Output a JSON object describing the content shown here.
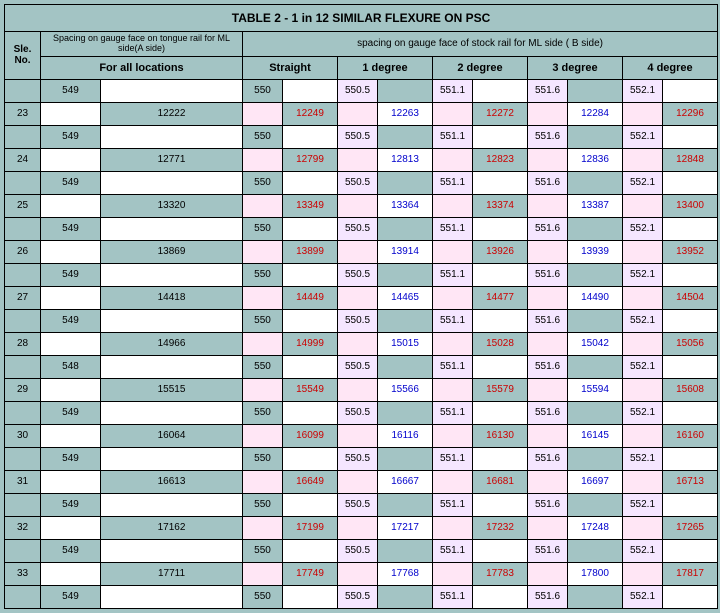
{
  "title": "TABLE 2 -  1 in 12  SIMILAR FLEXURE ON PSC",
  "headerA_top": "Spacing on gauge face on tongue rail for ML side(A side)",
  "headerB_top": "spacing on gauge face of stock rail for ML side ( B side)",
  "sle_label": "Sle. No.",
  "headerA_bot": "For all locations",
  "cols": [
    "Straight",
    "1 degree",
    "2 degree",
    "3 degree",
    "4 degree"
  ],
  "rowStyle": {
    "odd": {
      "a1": "549",
      "a2": "",
      "n1": [
        "550",
        "",
        "550.5",
        "",
        "551.1",
        "",
        "551.6",
        "",
        "552.1",
        ""
      ]
    },
    "odd548": {
      "a1": "548",
      "a2": "",
      "n1": [
        "550",
        "",
        "550.5",
        "",
        "551.1",
        "",
        "551.6",
        "",
        "552.1",
        ""
      ]
    }
  },
  "groups": [
    {
      "sle": "23",
      "middle": {
        "a1": "",
        "a2": "12222",
        "b": [
          "",
          "12249",
          "",
          "12263",
          "",
          "12272",
          "",
          "12284",
          "",
          "12296"
        ]
      },
      "oddKind": "odd"
    },
    {
      "sle": "24",
      "middle": {
        "a1": "",
        "a2": "12771",
        "b": [
          "",
          "12799",
          "",
          "12813",
          "",
          "12823",
          "",
          "12836",
          "",
          "12848"
        ]
      },
      "oddKind": "odd"
    },
    {
      "sle": "25",
      "middle": {
        "a1": "",
        "a2": "13320",
        "b": [
          "",
          "13349",
          "",
          "13364",
          "",
          "13374",
          "",
          "13387",
          "",
          "13400"
        ]
      },
      "oddKind": "odd"
    },
    {
      "sle": "26",
      "middle": {
        "a1": "",
        "a2": "13869",
        "b": [
          "",
          "13899",
          "",
          "13914",
          "",
          "13926",
          "",
          "13939",
          "",
          "13952"
        ]
      },
      "oddKind": "odd"
    },
    {
      "sle": "27",
      "middle": {
        "a1": "",
        "a2": "14418",
        "b": [
          "",
          "14449",
          "",
          "14465",
          "",
          "14477",
          "",
          "14490",
          "",
          "14504"
        ]
      },
      "oddKind": "odd"
    },
    {
      "sle": "28",
      "middle": {
        "a1": "",
        "a2": "14966",
        "b": [
          "",
          "14999",
          "",
          "15015",
          "",
          "15028",
          "",
          "15042",
          "",
          "15056"
        ]
      },
      "oddKind": "odd548"
    },
    {
      "sle": "29",
      "middle": {
        "a1": "",
        "a2": "15515",
        "b": [
          "",
          "15549",
          "",
          "15566",
          "",
          "15579",
          "",
          "15594",
          "",
          "15608"
        ]
      },
      "oddKind": "odd"
    },
    {
      "sle": "30",
      "middle": {
        "a1": "",
        "a2": "16064",
        "b": [
          "",
          "16099",
          "",
          "16116",
          "",
          "16130",
          "",
          "16145",
          "",
          "16160"
        ]
      },
      "oddKind": "odd"
    },
    {
      "sle": "31",
      "middle": {
        "a1": "",
        "a2": "16613",
        "b": [
          "",
          "16649",
          "",
          "16667",
          "",
          "16681",
          "",
          "16697",
          "",
          "16713"
        ]
      },
      "oddKind": "odd"
    },
    {
      "sle": "32",
      "middle": {
        "a1": "",
        "a2": "17162",
        "b": [
          "",
          "17199",
          "",
          "17217",
          "",
          "17232",
          "",
          "17248",
          "",
          "17265"
        ]
      },
      "oddKind": "odd"
    },
    {
      "sle": "33",
      "middle": {
        "a1": "",
        "a2": "17711",
        "b": [
          "",
          "17749",
          "",
          "17768",
          "",
          "17783",
          "",
          "17800",
          "",
          "17817"
        ]
      },
      "oddKind": "odd"
    }
  ],
  "colors": {
    "standard_bg": [
      "teal",
      "white",
      "lavA",
      "teal",
      "lavA",
      "white",
      "lavA",
      "teal",
      "lavA",
      "white"
    ],
    "middle_bg": [
      "lavB",
      "teal",
      "lavB",
      "white",
      "lavB",
      "teal",
      "lavB",
      "white",
      "lavB",
      "teal"
    ],
    "middle_txt": [
      "",
      "red",
      "",
      "blue",
      "",
      "red",
      "",
      "blue",
      "",
      "red"
    ]
  }
}
